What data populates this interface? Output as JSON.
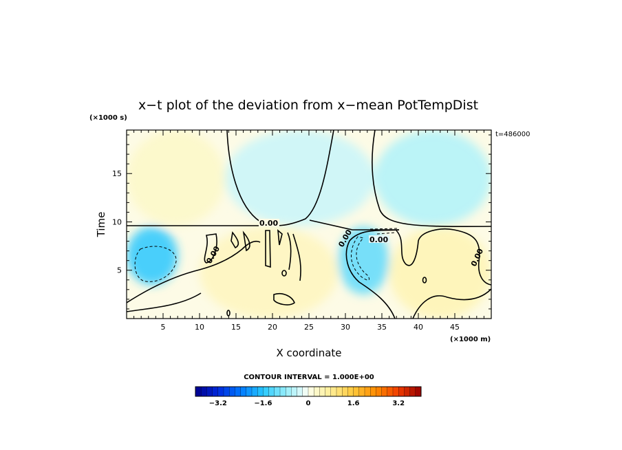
{
  "chart_data": {
    "type": "heatmap",
    "title": "x−t plot of the deviation from x−mean PotTempDist",
    "xlabel": "X coordinate",
    "ylabel": "Time",
    "x_unit": "(×1000 m)",
    "y_unit": "(×1000 s)",
    "time_stamp": "t=486000",
    "xlim": [
      0,
      50
    ],
    "ylim": [
      0,
      19.5
    ],
    "x_ticks": [
      5,
      10,
      15,
      20,
      25,
      30,
      35,
      40,
      45
    ],
    "y_ticks": [
      5,
      10,
      15
    ],
    "x_tick_labels": [
      "5",
      "10",
      "15",
      "20",
      "25",
      "30",
      "35",
      "40",
      "45"
    ],
    "y_tick_labels": [
      "5",
      "10",
      "15"
    ],
    "contour_interval_label": "CONTOUR INTERVAL = 1.000E+00",
    "contour_labels": [
      "0.00",
      "0.00",
      "0.00",
      "0.00",
      "0.00"
    ],
    "colorbar": {
      "min": -4.0,
      "max": 4.0,
      "step": 0.2,
      "tick_values": [
        -3.2,
        -1.6,
        0,
        1.6,
        3.2
      ],
      "tick_labels": [
        "−3.2",
        "−1.6",
        "0",
        "1.6",
        "3.2"
      ]
    },
    "regions": [
      {
        "name": "cool-upper-middle",
        "sign": "negative",
        "x": [
          13.5,
          34
        ],
        "y": [
          9.6,
          19.5
        ],
        "value": -0.4
      },
      {
        "name": "cool-upper-right",
        "sign": "negative",
        "x": [
          34,
          50
        ],
        "y": [
          9.6,
          19.5
        ],
        "value": -0.6
      },
      {
        "name": "warm-upper-left",
        "sign": "positive",
        "x": [
          0,
          13.5
        ],
        "y": [
          9.6,
          19.5
        ],
        "value": 0.3
      },
      {
        "name": "cool-left-minimum",
        "sign": "negative",
        "x": [
          0,
          7
        ],
        "y": [
          3.5,
          9.5
        ],
        "value": -1.6
      },
      {
        "name": "cool-near-x-30",
        "sign": "negative",
        "x": [
          29,
          36
        ],
        "y": [
          2.5,
          9.5
        ],
        "value": -1.2
      },
      {
        "name": "warm-lower-right",
        "sign": "positive",
        "x": [
          36,
          50
        ],
        "y": [
          0,
          9.5
        ],
        "value": 0.5
      },
      {
        "name": "warm-middle-band",
        "sign": "positive",
        "x": [
          10,
          29
        ],
        "y": [
          0,
          9.5
        ],
        "value": 0.4
      }
    ]
  }
}
